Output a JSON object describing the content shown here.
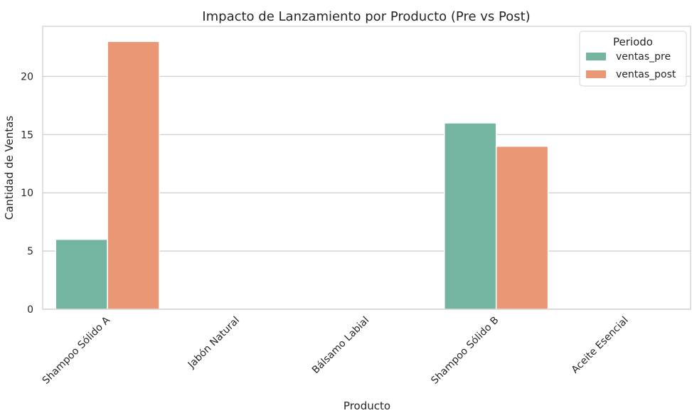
{
  "chart_data": {
    "type": "bar",
    "title": "Impacto de Lanzamiento por Producto (Pre vs Post)",
    "xlabel": "Producto",
    "ylabel": "Cantidad de Ventas",
    "categories": [
      "Shampoo Sólido A",
      "Jabón Natural",
      "Bálsamo Labial",
      "Shampoo Sólido B",
      "Aceite Esencial"
    ],
    "series": [
      {
        "name": "ventas_pre",
        "values": [
          6,
          0,
          0,
          16,
          0
        ],
        "color": "#73b5a1"
      },
      {
        "name": "ventas_post",
        "values": [
          23,
          0,
          0,
          14,
          0
        ],
        "color": "#e99775"
      }
    ],
    "ylim": [
      0,
      24.3
    ],
    "yticks": [
      0,
      5,
      10,
      15,
      20
    ],
    "grid": true,
    "legend": {
      "title": "Periodo",
      "position": "top-right"
    }
  }
}
